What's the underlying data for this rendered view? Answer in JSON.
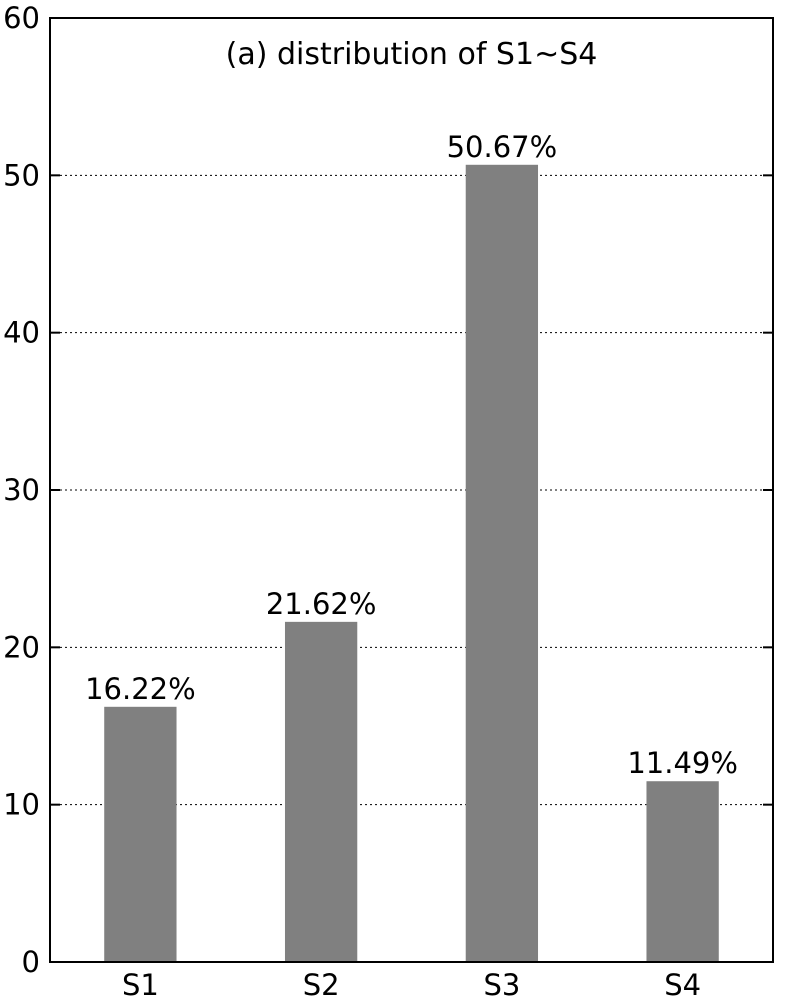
{
  "chart_data": {
    "type": "bar",
    "title": "(a) distribution of S1~S4",
    "xlabel": "",
    "ylabel": "",
    "categories": [
      "S1",
      "S2",
      "S3",
      "S4"
    ],
    "values": [
      16.22,
      21.62,
      50.67,
      11.49
    ],
    "data_labels": [
      "16.22%",
      "21.62%",
      "50.67%",
      "11.49%"
    ],
    "ylim": [
      0,
      60
    ],
    "yticks": [
      0,
      10,
      20,
      30,
      40,
      50,
      60
    ],
    "ytick_labels": [
      "0",
      "10",
      "20",
      "30",
      "40",
      "50",
      "60"
    ],
    "grid": true,
    "legend": false,
    "bar_color": "#808080"
  }
}
